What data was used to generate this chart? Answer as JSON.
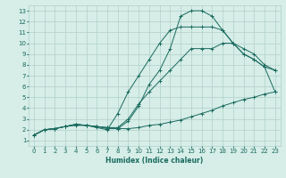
{
  "xlabel": "Humidex (Indice chaleur)",
  "bg_color": "#d6ede8",
  "line_color": "#1a6b5e",
  "grid_color": "#b0cfc8",
  "xlim": [
    -0.5,
    23.5
  ],
  "ylim": [
    0.5,
    13.5
  ],
  "xticks": [
    0,
    1,
    2,
    3,
    4,
    5,
    6,
    7,
    8,
    9,
    10,
    11,
    12,
    13,
    14,
    15,
    16,
    17,
    18,
    19,
    20,
    21,
    22,
    23
  ],
  "yticks": [
    1,
    2,
    3,
    4,
    5,
    6,
    7,
    8,
    9,
    10,
    11,
    12,
    13
  ],
  "lines": [
    {
      "x": [
        0,
        1,
        2,
        3,
        4,
        5,
        6,
        7,
        8,
        9,
        10,
        11,
        12,
        13,
        14,
        15,
        16,
        17,
        18,
        19,
        20,
        21,
        22,
        23
      ],
      "y": [
        1.5,
        2.0,
        2.1,
        2.3,
        2.5,
        2.4,
        2.3,
        2.1,
        2.1,
        2.8,
        4.2,
        6.2,
        7.5,
        9.5,
        12.5,
        13.0,
        13.0,
        12.5,
        11.2,
        10.0,
        9.0,
        8.5,
        7.8,
        7.5
      ]
    },
    {
      "x": [
        0,
        1,
        2,
        3,
        4,
        5,
        6,
        7,
        8,
        9,
        10,
        11,
        12,
        13,
        14,
        15,
        16,
        17,
        18,
        19,
        20,
        21,
        22,
        23
      ],
      "y": [
        1.5,
        2.0,
        2.1,
        2.3,
        2.5,
        2.4,
        2.2,
        2.0,
        3.5,
        5.5,
        7.0,
        8.5,
        10.0,
        11.2,
        11.5,
        11.5,
        11.5,
        11.5,
        11.2,
        10.0,
        9.0,
        8.5,
        7.8,
        5.5
      ]
    },
    {
      "x": [
        0,
        1,
        2,
        3,
        4,
        5,
        6,
        7,
        8,
        9,
        10,
        11,
        12,
        13,
        14,
        15,
        16,
        17,
        18,
        19,
        20,
        21,
        22,
        23
      ],
      "y": [
        1.5,
        2.0,
        2.1,
        2.3,
        2.5,
        2.4,
        2.3,
        2.2,
        2.2,
        3.0,
        4.4,
        5.5,
        6.5,
        7.5,
        8.5,
        9.5,
        9.5,
        9.5,
        10.0,
        10.0,
        9.5,
        9.0,
        8.0,
        7.5
      ]
    },
    {
      "x": [
        0,
        1,
        2,
        3,
        4,
        5,
        6,
        7,
        8,
        9,
        10,
        11,
        12,
        13,
        14,
        15,
        16,
        17,
        18,
        19,
        20,
        21,
        22,
        23
      ],
      "y": [
        1.5,
        2.0,
        2.1,
        2.3,
        2.4,
        2.4,
        2.3,
        2.2,
        2.1,
        2.1,
        2.2,
        2.4,
        2.5,
        2.7,
        2.9,
        3.2,
        3.5,
        3.8,
        4.2,
        4.5,
        4.8,
        5.0,
        5.3,
        5.5
      ]
    }
  ]
}
